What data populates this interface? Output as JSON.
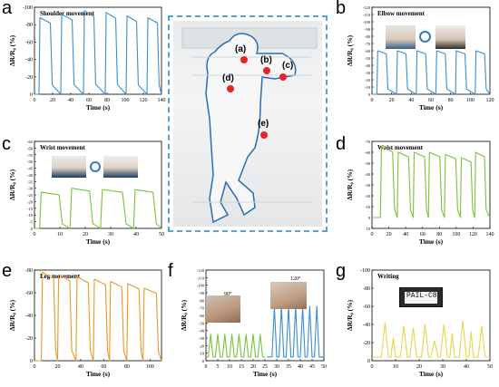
{
  "letters": {
    "a": "a",
    "b": "b",
    "c": "c",
    "d": "d",
    "e": "e",
    "f": "f",
    "g": "g"
  },
  "center": {
    "points": [
      "(a)",
      "(b)",
      "(c)",
      "(d)",
      "(e)"
    ]
  },
  "colors": {
    "blue": "#3a8fd0",
    "green": "#7bc23c",
    "orange": "#e39a2a",
    "yellow": "#e5d64a",
    "dot": "#e8232a"
  },
  "chart_data": [
    {
      "id": "a",
      "type": "line",
      "title": "Shoulder movement",
      "xlabel": "Time (s)",
      "ylabel": "ΔR/R₀ (%)",
      "xlim": [
        0,
        140
      ],
      "ylim": [
        -100,
        0
      ],
      "yinvert": true,
      "xticks": [
        "0",
        "20",
        "40",
        "60",
        "80",
        "100",
        "120",
        "140"
      ],
      "yticks": [
        "0",
        "-20",
        "-40",
        "-60",
        "-80",
        "-100"
      ],
      "series": [
        {
          "color": "blue",
          "base": 0,
          "peaks": [
            {
              "s": 5,
              "e": 18,
              "v": -88
            },
            {
              "s": 29,
              "e": 42,
              "v": -92
            },
            {
              "s": 54,
              "e": 66,
              "v": -96
            },
            {
              "s": 78,
              "e": 90,
              "v": -94
            },
            {
              "s": 101,
              "e": 113,
              "v": -90
            },
            {
              "s": 124,
              "e": 136,
              "v": -88
            }
          ]
        }
      ]
    },
    {
      "id": "b",
      "type": "line",
      "title": "Elbow movement",
      "xlabel": "Time (s)",
      "ylabel": "ΔR/R₀ (%)",
      "xlim": [
        0,
        120
      ],
      "ylim": [
        -120,
        0
      ],
      "yinvert": true,
      "xticks": [
        "0",
        "20",
        "40",
        "60",
        "80",
        "100",
        "120"
      ],
      "yticks": [
        "0",
        "-10",
        "-20",
        "-30",
        "-40",
        "-50",
        "-60",
        "-70",
        "-80",
        "-90",
        "-100",
        "-110",
        "-120"
      ],
      "series": [
        {
          "color": "blue",
          "base": 0,
          "peaks": [
            {
              "s": 5,
              "e": 15,
              "v": -60
            },
            {
              "s": 25,
              "e": 35,
              "v": -60
            },
            {
              "s": 45,
              "e": 55,
              "v": -60
            },
            {
              "s": 65,
              "e": 75,
              "v": -60
            },
            {
              "s": 85,
              "e": 95,
              "v": -60
            },
            {
              "s": 105,
              "e": 115,
              "v": -60
            }
          ]
        }
      ]
    },
    {
      "id": "c",
      "type": "line",
      "title": "Wrist movement",
      "xlabel": "Time (s)",
      "ylabel": "ΔR/R₀ (%)",
      "xlim": [
        0,
        50
      ],
      "ylim": [
        -65,
        0
      ],
      "yinvert": true,
      "xticks": [
        "0",
        "10",
        "20",
        "30",
        "40",
        "50"
      ],
      "yticks": [
        "0",
        "-5",
        "-10",
        "-15",
        "-20",
        "-25",
        "-30",
        "-35",
        "-40",
        "-45",
        "-50",
        "-55",
        "-60",
        "-65"
      ],
      "series": [
        {
          "color": "green",
          "base": 0,
          "peaks": [
            {
              "s": 2,
              "e": 10,
              "v": -27
            },
            {
              "s": 14,
              "e": 22,
              "v": -30
            },
            {
              "s": 26,
              "e": 35,
              "v": -29
            },
            {
              "s": 39,
              "e": 47,
              "v": -29
            }
          ]
        }
      ]
    },
    {
      "id": "d",
      "type": "line",
      "title": "Waist movement",
      "xlabel": "Time (s)",
      "ylabel": "ΔR/R₀ (%)",
      "xlim": [
        0,
        140
      ],
      "ylim": [
        -70,
        10
      ],
      "yinvert": true,
      "xticks": [
        "0",
        "20",
        "40",
        "60",
        "80",
        "100",
        "120",
        "140"
      ],
      "yticks": [
        "10",
        "0",
        "-10",
        "-20",
        "-30",
        "-40",
        "-50",
        "-60",
        "-70"
      ],
      "series": [
        {
          "color": "green",
          "base": 0,
          "peaks": [
            {
              "s": 10,
              "e": 25,
              "v": -65
            },
            {
              "s": 30,
              "e": 44,
              "v": -60
            },
            {
              "s": 49,
              "e": 63,
              "v": -60
            },
            {
              "s": 67,
              "e": 81,
              "v": -60
            },
            {
              "s": 86,
              "e": 100,
              "v": -58
            },
            {
              "s": 105,
              "e": 118,
              "v": -55
            },
            {
              "s": 122,
              "e": 134,
              "v": -60
            }
          ]
        }
      ]
    },
    {
      "id": "e",
      "type": "line",
      "title": "Leg movement",
      "xlabel": "Time (s)",
      "ylabel": "ΔR/R₀ (%)",
      "xlim": [
        0,
        110
      ],
      "ylim": [
        -80,
        0
      ],
      "yinvert": true,
      "xticks": [
        "0",
        "20",
        "40",
        "60",
        "80",
        "100"
      ],
      "yticks": [
        "0",
        "-20",
        "-40",
        "-60",
        "-80"
      ],
      "series": [
        {
          "color": "orange",
          "base": 0,
          "peaks": [
            {
              "s": 6,
              "e": 17,
              "v": -78
            },
            {
              "s": 20,
              "e": 31,
              "v": -76
            },
            {
              "s": 36,
              "e": 47,
              "v": -74
            },
            {
              "s": 51,
              "e": 62,
              "v": -72
            },
            {
              "s": 65,
              "e": 76,
              "v": -70
            },
            {
              "s": 80,
              "e": 91,
              "v": -68
            },
            {
              "s": 94,
              "e": 106,
              "v": -64
            }
          ]
        }
      ]
    },
    {
      "id": "f",
      "type": "line",
      "title": "",
      "xlabel": "Time (s)",
      "ylabel": "ΔR/R₀ (%)",
      "xlim": [
        0,
        50
      ],
      "ylim": [
        -120,
        0
      ],
      "yinvert": true,
      "xticks": [
        "0",
        "5",
        "10",
        "15",
        "20",
        "25",
        "30",
        "35",
        "40",
        "45",
        "50"
      ],
      "yticks": [
        "0",
        "-10",
        "-20",
        "-30",
        "-40",
        "-50",
        "-60",
        "-70",
        "-80",
        "-90",
        "-100",
        "-110",
        "-120"
      ],
      "annotations": [
        "90°",
        "120°"
      ],
      "series": [
        {
          "color": "green",
          "base": -5,
          "peaks": [
            {
              "s": 1,
              "e": 3,
              "v": -35
            },
            {
              "s": 4,
              "e": 6,
              "v": -35
            },
            {
              "s": 7,
              "e": 9,
              "v": -35
            },
            {
              "s": 10,
              "e": 12,
              "v": -35
            },
            {
              "s": 13,
              "e": 15,
              "v": -35
            },
            {
              "s": 16,
              "e": 18,
              "v": -35
            },
            {
              "s": 19,
              "e": 21,
              "v": -35
            },
            {
              "s": 22,
              "e": 24,
              "v": -35
            }
          ],
          "sharp": true
        },
        {
          "color": "blue",
          "base": -5,
          "peaks": [
            {
              "s": 28,
              "e": 30,
              "v": -72
            },
            {
              "s": 31,
              "e": 33,
              "v": -72
            },
            {
              "s": 34,
              "e": 36,
              "v": -72
            },
            {
              "s": 37,
              "e": 39,
              "v": -72
            },
            {
              "s": 40,
              "e": 42,
              "v": -72
            },
            {
              "s": 43,
              "e": 45,
              "v": -72
            },
            {
              "s": 46,
              "e": 48,
              "v": -72
            }
          ],
          "sharp": true
        }
      ]
    },
    {
      "id": "g",
      "type": "line",
      "title": "Writing",
      "xlabel": "Time (s)",
      "ylabel": "ΔR/R₀ (%)",
      "xlim": [
        0,
        50
      ],
      "ylim": [
        -100,
        0
      ],
      "yinvert": true,
      "xticks": [
        "0",
        "10",
        "20",
        "30",
        "40",
        "50"
      ],
      "yticks": [
        "0",
        "-20",
        "-40",
        "-60",
        "-80",
        "-100"
      ],
      "annotations": [
        "PAIL-C8"
      ],
      "series": [
        {
          "color": "yellow",
          "base": -4,
          "peaks": [
            {
              "s": 4,
              "e": 7,
              "v": -42
            },
            {
              "s": 8,
              "e": 10,
              "v": -25
            },
            {
              "s": 12,
              "e": 15,
              "v": -38
            },
            {
              "s": 16,
              "e": 19,
              "v": -36
            },
            {
              "s": 21,
              "e": 24,
              "v": -40
            },
            {
              "s": 25,
              "e": 28,
              "v": -22
            },
            {
              "s": 29,
              "e": 32,
              "v": -40
            },
            {
              "s": 33,
              "e": 35,
              "v": -30
            },
            {
              "s": 37,
              "e": 40,
              "v": -44
            },
            {
              "s": 41,
              "e": 43,
              "v": -32
            },
            {
              "s": 45,
              "e": 48,
              "v": -38
            }
          ],
          "sharp": true
        }
      ]
    }
  ]
}
